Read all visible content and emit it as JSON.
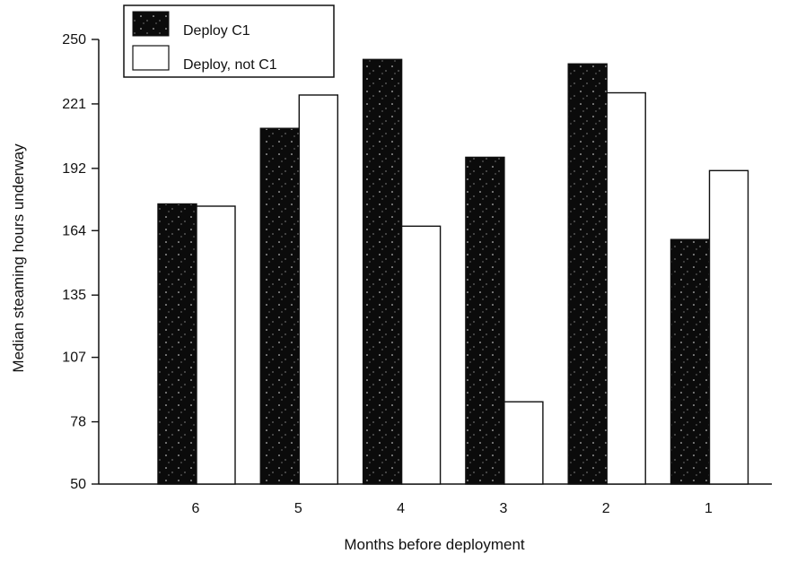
{
  "chart_data": {
    "type": "bar",
    "title": "",
    "xlabel": "Months before deployment",
    "ylabel": "Median steaming hours underway",
    "categories": [
      "6",
      "5",
      "4",
      "3",
      "2",
      "1"
    ],
    "series": [
      {
        "name": "Deploy C1",
        "values": [
          176,
          210,
          241,
          197,
          239,
          160
        ],
        "color": "#0b0b0b"
      },
      {
        "name": "Deploy, not C1",
        "values": [
          175,
          225,
          166,
          87,
          226,
          191
        ],
        "color": "#ffffff"
      }
    ],
    "yticks": [
      "250",
      "221",
      "192",
      "164",
      "135",
      "107",
      "78",
      "50"
    ],
    "ytick_values": [
      250,
      221,
      192,
      164,
      135,
      107,
      78,
      50
    ],
    "ylim": [
      50,
      250
    ],
    "grid": false,
    "legend_position": "top-left"
  }
}
